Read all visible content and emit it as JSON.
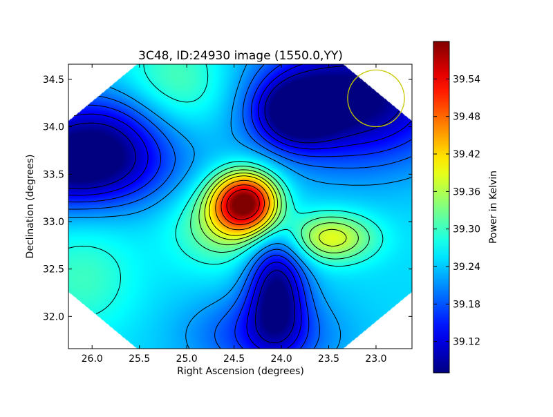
{
  "chart_data": {
    "type": "heatmap",
    "title": "3C48, ID:24930 image (1550.0,YY)",
    "xlabel": "Right Ascension (degrees)",
    "ylabel": "Declination (degrees)",
    "xlim": [
      26.25,
      22.62
    ],
    "ylim": [
      31.66,
      34.66
    ],
    "x_ticks": [
      26.0,
      25.5,
      25.0,
      24.5,
      24.0,
      23.5,
      23.0
    ],
    "x_tick_labels": [
      "26.0",
      "25.5",
      "25.0",
      "24.5",
      "24.0",
      "23.5",
      "23.0"
    ],
    "y_ticks": [
      32.0,
      32.5,
      33.0,
      33.5,
      34.0,
      34.5
    ],
    "y_tick_labels": [
      "32.0",
      "32.5",
      "33.0",
      "33.5",
      "34.0",
      "34.5"
    ],
    "colormap": "jet",
    "colorbar": {
      "label": "Power in Kelvin",
      "vmin": 39.07,
      "vmax": 39.6,
      "ticks": [
        39.12,
        39.18,
        39.24,
        39.3,
        39.36,
        39.42,
        39.48,
        39.54
      ],
      "tick_labels": [
        "39.12",
        "39.18",
        "39.24",
        "39.30",
        "39.36",
        "39.42",
        "39.48",
        "39.54"
      ]
    },
    "background_level": 39.25,
    "features": [
      {
        "kind": "peak",
        "ra": 24.38,
        "dec": 33.2,
        "value": 39.6,
        "sigma_ra": 0.24,
        "sigma_dec": 0.22
      },
      {
        "kind": "peak",
        "ra": 23.48,
        "dec": 32.83,
        "value": 39.39,
        "sigma_ra": 0.32,
        "sigma_dec": 0.18
      },
      {
        "kind": "peak",
        "ra": 24.65,
        "dec": 32.95,
        "value": 39.33,
        "sigma_ra": 0.35,
        "sigma_dec": 0.3
      },
      {
        "kind": "trough",
        "ra": 26.15,
        "dec": 33.55,
        "value": 39.07,
        "sigma_ra": 0.65,
        "sigma_dec": 0.3
      },
      {
        "kind": "trough",
        "ra": 23.2,
        "dec": 34.3,
        "value": 39.06,
        "sigma_ra": 0.7,
        "sigma_dec": 0.48
      },
      {
        "kind": "trough",
        "ra": 24.05,
        "dec": 32.3,
        "value": 39.08,
        "sigma_ra": 0.22,
        "sigma_dec": 0.42
      },
      {
        "kind": "trough",
        "ra": 23.85,
        "dec": 34.15,
        "value": 39.1,
        "sigma_ra": 0.3,
        "sigma_dec": 0.25
      },
      {
        "kind": "trough",
        "ra": 25.9,
        "dec": 34.0,
        "value": 39.14,
        "sigma_ra": 0.6,
        "sigma_dec": 0.3
      },
      {
        "kind": "trough",
        "ra": 24.2,
        "dec": 31.8,
        "value": 39.16,
        "sigma_ra": 0.55,
        "sigma_dec": 0.3
      },
      {
        "kind": "rise",
        "ra": 25.1,
        "dec": 34.4,
        "value": 39.32,
        "sigma_ra": 0.4,
        "sigma_dec": 0.4
      },
      {
        "kind": "rise",
        "ra": 26.1,
        "dec": 32.4,
        "value": 39.3,
        "sigma_ra": 0.4,
        "sigma_dec": 0.4
      }
    ],
    "contour_levels": [
      39.1,
      39.13,
      39.16,
      39.19,
      39.22,
      39.28,
      39.31,
      39.34,
      39.37,
      39.4,
      39.45,
      39.5,
      39.55
    ],
    "beam_circle": {
      "ra": 23.0,
      "dec": 34.3,
      "radius_deg": 0.3,
      "color": "#c8c800"
    },
    "grid": false,
    "legend": "none"
  }
}
